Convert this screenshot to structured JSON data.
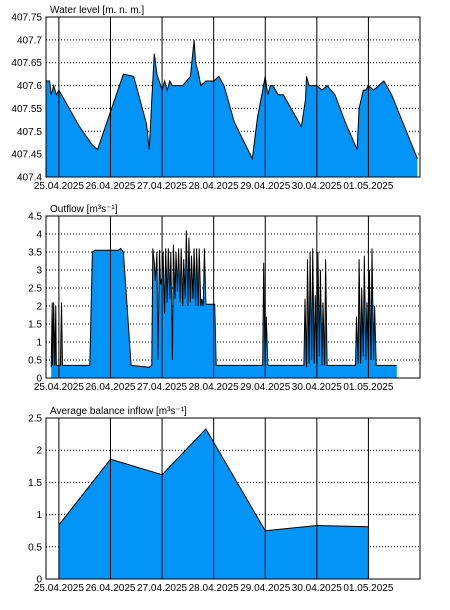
{
  "colors": {
    "fill": "#0394f8",
    "stroke": "#000000",
    "grid": "#000000",
    "background": "#ffffff"
  },
  "x_labels": [
    "25.04.2025",
    "26.04.2025",
    "27.04.2025",
    "28.04.2025",
    "29.04.2025",
    "30.04.2025",
    "01.05.2025"
  ],
  "chart_data": [
    {
      "type": "area",
      "title": "Water level [m. n. m.]",
      "x_unit": "days from 25.04.2025 00:00",
      "xlim": [
        -0.25,
        7.0
      ],
      "ylim": [
        407.4,
        407.75
      ],
      "yticks": [
        407.4,
        407.45,
        407.5,
        407.55,
        407.6,
        407.65,
        407.7,
        407.75
      ],
      "ytick_labels": [
        "407.4",
        "407.45",
        "407.5",
        "407.55",
        "407.6",
        "407.65",
        "407.7",
        "407.75"
      ],
      "grid": true,
      "x": [
        -0.25,
        -0.18,
        -0.15,
        -0.1,
        -0.05,
        0.0,
        0.2,
        0.4,
        0.65,
        0.75,
        0.78,
        1.25,
        1.45,
        1.7,
        1.75,
        1.78,
        1.8,
        1.85,
        1.9,
        2.0,
        2.05,
        2.1,
        2.15,
        2.2,
        2.3,
        2.4,
        2.55,
        2.62,
        2.65,
        2.7,
        2.75,
        2.85,
        3.0,
        3.1,
        3.2,
        3.4,
        3.75,
        3.85,
        3.95,
        4.0,
        4.05,
        4.1,
        4.15,
        4.25,
        4.35,
        4.5,
        4.7,
        4.78,
        4.8,
        4.85,
        4.9,
        5.0,
        5.1,
        5.2,
        5.35,
        5.55,
        5.78,
        5.82,
        5.9,
        5.95,
        6.0,
        6.1,
        6.2,
        6.3,
        6.45,
        6.7,
        6.95
      ],
      "y": [
        407.61,
        407.61,
        407.58,
        407.6,
        407.58,
        407.59,
        407.55,
        407.51,
        407.47,
        407.46,
        407.47,
        407.625,
        407.62,
        407.515,
        407.46,
        407.52,
        407.57,
        407.67,
        407.625,
        407.59,
        407.61,
        407.59,
        407.61,
        407.6,
        407.6,
        407.6,
        407.62,
        407.7,
        407.65,
        407.63,
        407.6,
        407.61,
        407.61,
        407.62,
        407.6,
        407.52,
        407.44,
        407.53,
        407.59,
        407.62,
        407.58,
        407.6,
        407.6,
        407.58,
        407.58,
        407.55,
        407.51,
        407.57,
        407.62,
        407.6,
        407.6,
        407.6,
        407.59,
        407.6,
        407.58,
        407.52,
        407.46,
        407.55,
        407.59,
        407.59,
        407.6,
        407.59,
        407.6,
        407.61,
        407.58,
        407.51,
        407.44
      ]
    },
    {
      "type": "area",
      "title": "Outflow [m³s⁻¹]",
      "x_unit": "days from 25.04.2025 00:00",
      "xlim": [
        -0.25,
        7.0
      ],
      "ylim": [
        0,
        4.5
      ],
      "yticks": [
        0,
        0.5,
        1,
        1.5,
        2,
        2.5,
        3,
        3.5,
        4,
        4.5
      ],
      "ytick_labels": [
        "0",
        "0.5",
        "1",
        "1.5",
        "2",
        "2.5",
        "3",
        "3.5",
        "4",
        "4.5"
      ],
      "grid": true,
      "x": [
        -0.15,
        -0.13,
        -0.12,
        -0.1,
        -0.08,
        -0.06,
        -0.05,
        -0.03,
        -0.01,
        0.01,
        0.03,
        0.05,
        0.07,
        0.4,
        0.6,
        0.65,
        0.7,
        1.15,
        1.2,
        1.25,
        1.4,
        1.75,
        1.8,
        1.82,
        1.85,
        1.87,
        1.9,
        1.92,
        1.95,
        1.97,
        2.0,
        2.02,
        2.05,
        2.07,
        2.1,
        2.12,
        2.15,
        2.17,
        2.2,
        2.22,
        2.25,
        2.27,
        2.3,
        2.32,
        2.35,
        2.37,
        2.4,
        2.42,
        2.45,
        2.47,
        2.5,
        2.52,
        2.55,
        2.57,
        2.6,
        2.62,
        2.65,
        2.67,
        2.7,
        2.72,
        2.75,
        2.77,
        2.8,
        2.82,
        2.85,
        2.87,
        2.9,
        2.92,
        2.95,
        3.02,
        3.05,
        3.1,
        3.5,
        3.95,
        3.97,
        4.0,
        4.02,
        4.05,
        4.35,
        4.75,
        4.77,
        4.8,
        4.82,
        4.85,
        4.87,
        4.9,
        4.92,
        4.95,
        4.97,
        5.0,
        5.02,
        5.05,
        5.07,
        5.1,
        5.12,
        5.15,
        5.17,
        5.2,
        5.25,
        5.75,
        5.77,
        5.8,
        5.82,
        5.85,
        5.87,
        5.9,
        5.92,
        5.95,
        5.97,
        6.0,
        6.02,
        6.05,
        6.07,
        6.1,
        6.12,
        6.15,
        6.2,
        6.55
      ],
      "y": [
        0.3,
        2.1,
        0.35,
        2.1,
        0.35,
        2.0,
        0.35,
        0.35,
        0.35,
        0.35,
        0.35,
        2.1,
        0.35,
        0.35,
        0.35,
        3.5,
        3.55,
        3.55,
        3.6,
        3.5,
        0.35,
        0.3,
        0.35,
        3.6,
        3.2,
        2.7,
        3.5,
        0.5,
        3.55,
        2.6,
        2.8,
        3.5,
        1.8,
        3.6,
        2.1,
        3.6,
        2.2,
        3.5,
        0.5,
        3.7,
        2.2,
        3.5,
        2.4,
        3.6,
        2.1,
        3.6,
        2.0,
        3.3,
        2.2,
        4.1,
        2.0,
        3.9,
        2.1,
        3.4,
        2.2,
        3.6,
        2.0,
        3.6,
        2.0,
        3.6,
        2.0,
        2.2,
        2.0,
        3.6,
        2.05,
        2.05,
        2.05,
        2.05,
        2.05,
        2.05,
        0.35,
        0.35,
        0.35,
        0.35,
        3.2,
        0.4,
        1.7,
        0.35,
        0.35,
        0.35,
        2.2,
        0.3,
        3.3,
        0.4,
        3.5,
        0.5,
        3.6,
        0.4,
        2.3,
        0.4,
        3.5,
        0.6,
        3.0,
        0.35,
        2.1,
        0.35,
        3.3,
        0.35,
        0.35,
        0.35,
        1.7,
        0.4,
        3.3,
        0.4,
        2.5,
        0.6,
        3.4,
        0.5,
        2.1,
        0.6,
        3.0,
        0.5,
        3.6,
        0.5,
        2.0,
        0.35,
        0.35,
        0.35
      ]
    },
    {
      "type": "area",
      "title": "Average balance inflow  [m³s⁻¹]",
      "x_unit": "days from 25.04.2025 00:00",
      "xlim": [
        -0.25,
        7.0
      ],
      "ylim": [
        0,
        2.5
      ],
      "yticks": [
        0,
        0.5,
        1,
        1.5,
        2,
        2.5
      ],
      "ytick_labels": [
        "0",
        "0.5",
        "1",
        "1.5",
        "2",
        "2.5"
      ],
      "grid": true,
      "x": [
        0.0,
        1.0,
        2.0,
        2.85,
        4.0,
        5.0,
        6.0
      ],
      "y": [
        0.84,
        1.86,
        1.62,
        2.33,
        0.75,
        0.83,
        0.81
      ]
    }
  ]
}
